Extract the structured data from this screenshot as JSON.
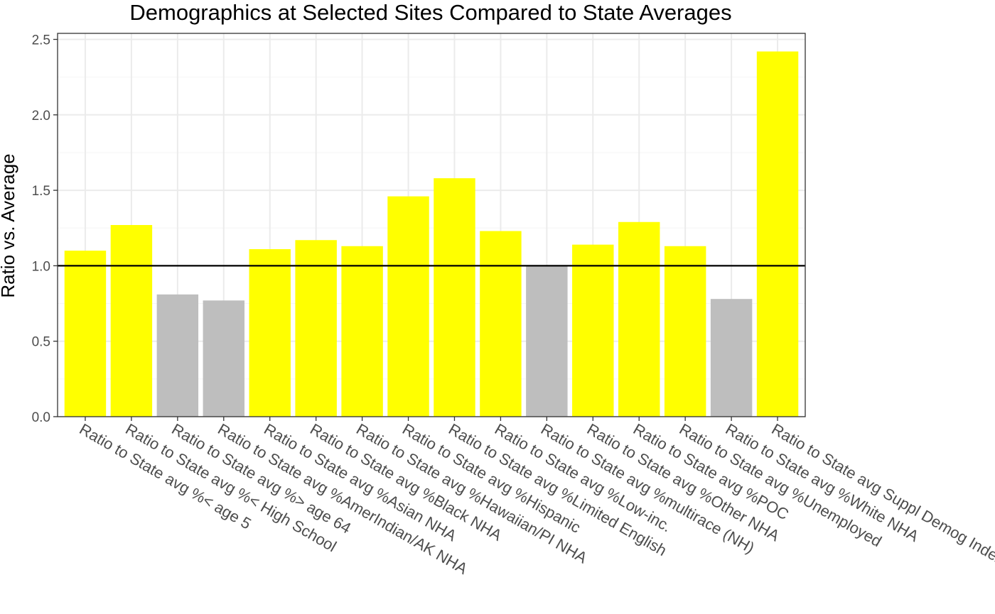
{
  "chart_data": {
    "type": "bar",
    "title": "Demographics at Selected Sites Compared to State Averages",
    "xlabel": "",
    "ylabel": "Ratio vs. Average",
    "ylim": [
      0,
      2.54
    ],
    "yticks": [
      "0.0",
      "0.5",
      "1.0",
      "1.5",
      "2.0",
      "2.5"
    ],
    "reference_line": 1.0,
    "grid": true,
    "categories": [
      "Ratio to State avg %< age 5",
      "Ratio to State avg %< High School",
      "Ratio to State avg %> age 64",
      "Ratio to State avg %AmerIndian/AK NHA",
      "Ratio to State avg %Asian NHA",
      "Ratio to State avg %Black NHA",
      "Ratio to State avg %Hawaiian/PI NHA",
      "Ratio to State avg %Hispanic",
      "Ratio to State avg %Limited English",
      "Ratio to State avg %Low-inc.",
      "Ratio to State avg %multirace (NH)",
      "Ratio to State avg %Other NHA",
      "Ratio to State avg %POC",
      "Ratio to State avg %Unemployed",
      "Ratio to State avg %White NHA",
      "Ratio to State avg Suppl Demog Index"
    ],
    "values": [
      1.1,
      1.27,
      0.81,
      0.77,
      1.11,
      1.17,
      1.13,
      1.46,
      1.58,
      1.23,
      1.0,
      1.14,
      1.29,
      1.13,
      0.78,
      2.42
    ],
    "colors": {
      "above": "#ffff00",
      "below": "#bebebe",
      "panel_border": "#333333",
      "grid_major": "#ebebeb",
      "grid_minor": "#f5f5f5",
      "ref_line": "#000000"
    }
  }
}
